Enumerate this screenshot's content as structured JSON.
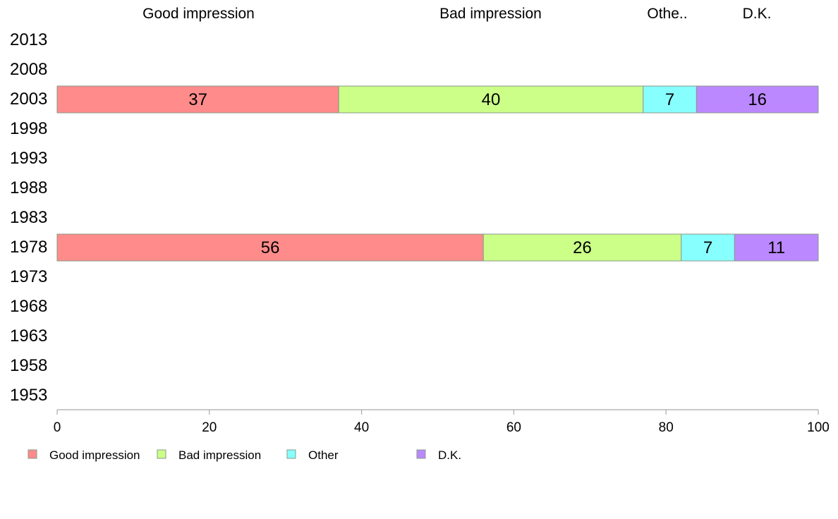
{
  "chart_data": {
    "type": "bar",
    "orientation": "horizontal",
    "stacked": true,
    "categories": [
      "2013",
      "2008",
      "2003",
      "1998",
      "1993",
      "1988",
      "1983",
      "1978",
      "1973",
      "1968",
      "1963",
      "1958",
      "1953"
    ],
    "column_headers": [
      "Good impression",
      "Bad impression",
      "Othe..",
      "D.K."
    ],
    "series": [
      {
        "name": "Good impression",
        "color": "#ff8b8b",
        "values": [
          null,
          null,
          37,
          null,
          null,
          null,
          null,
          56,
          null,
          null,
          null,
          null,
          null
        ]
      },
      {
        "name": "Bad impression",
        "color": "#ccff88",
        "values": [
          null,
          null,
          40,
          null,
          null,
          null,
          null,
          26,
          null,
          null,
          null,
          null,
          null
        ]
      },
      {
        "name": "Other",
        "color": "#88ffff",
        "values": [
          null,
          null,
          7,
          null,
          null,
          null,
          null,
          7,
          null,
          null,
          null,
          null,
          null
        ]
      },
      {
        "name": "D.K.",
        "color": "#bb88ff",
        "values": [
          null,
          null,
          16,
          null,
          null,
          null,
          null,
          11,
          null,
          null,
          null,
          null,
          null
        ]
      }
    ],
    "xlim": [
      0,
      100
    ],
    "xticks": [
      "0",
      "20",
      "40",
      "60",
      "80",
      "100"
    ],
    "legend_position": "bottom-left",
    "grid": false
  }
}
